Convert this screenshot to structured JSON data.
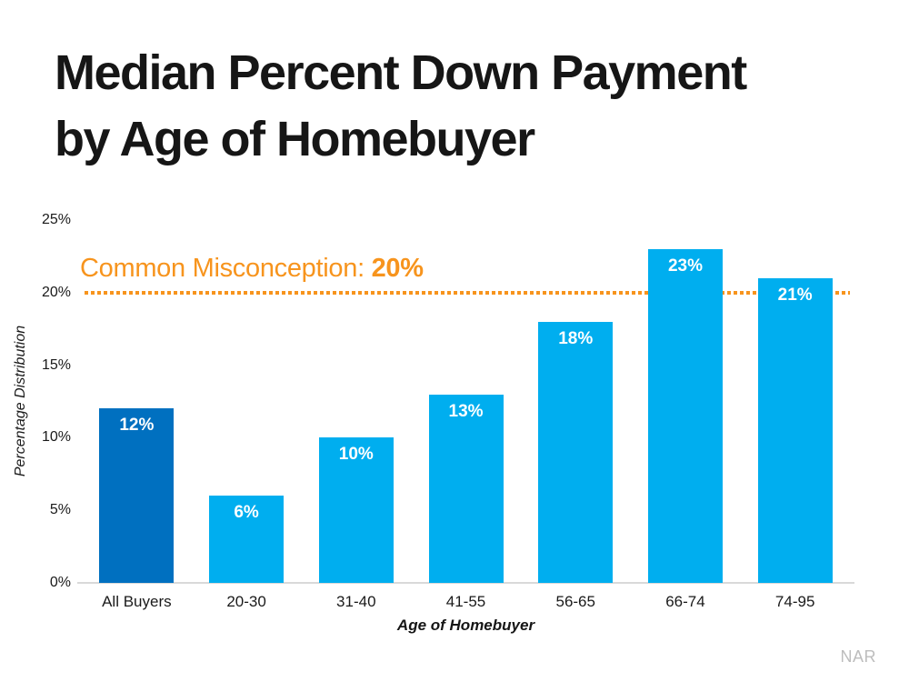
{
  "title": {
    "lines": [
      "Median Percent Down Payment",
      "by Age of Homebuyer"
    ],
    "full": "Median Percent Down Payment by Age of Homebuyer"
  },
  "annotation": {
    "prefix": "Common Misconception: ",
    "value": "20%"
  },
  "source_label": "NAR",
  "colors": {
    "bar_default": "#00AEEF",
    "bar_highlight": "#0070C0",
    "annotation_orange": "#F7941D",
    "axis_line": "#D9D9D9",
    "bar_label_text": "#FFFFFF",
    "title_text": "#161616",
    "source_text": "#BDBDBD"
  },
  "chart_data": {
    "type": "bar",
    "title": "Median Percent Down Payment by Age of Homebuyer",
    "categories": [
      "All Buyers",
      "20-30",
      "31-40",
      "41-55",
      "56-65",
      "66-74",
      "74-95"
    ],
    "values": [
      12,
      6,
      10,
      13,
      18,
      23,
      21
    ],
    "bar_labels": [
      "12%",
      "6%",
      "10%",
      "13%",
      "18%",
      "23%",
      "21%"
    ],
    "bar_colors": [
      "#0070C0",
      "#00AEEF",
      "#00AEEF",
      "#00AEEF",
      "#00AEEF",
      "#00AEEF",
      "#00AEEF"
    ],
    "xlabel": "Age of Homebuyer",
    "ylabel": "Percentage Distribution",
    "ylim": [
      0,
      25
    ],
    "yticks": [
      "0%",
      "5%",
      "10%",
      "15%",
      "20%",
      "25%"
    ],
    "ytick_values": [
      0,
      5,
      10,
      15,
      20,
      25
    ],
    "grid": false,
    "legend": false,
    "reference_line": {
      "value": 20,
      "style": "dotted",
      "color": "#F7941D",
      "label": "Common Misconception: 20%"
    }
  }
}
